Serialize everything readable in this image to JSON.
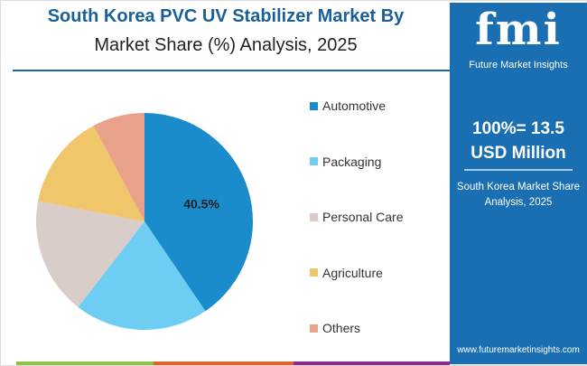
{
  "title": "South Korea PVC UV Stabilizer Market By",
  "subtitle": "Market Share (%) Analysis, 2025",
  "panel": {
    "logo": "fmi",
    "logo_sub": "Future Market Insights",
    "total_line1": "100%= 13.5",
    "total_line2": "USD Million",
    "note": "South Korea Market Share Analysis, 2025",
    "url": "www.futuremarketinsights.com"
  },
  "chart_data": {
    "type": "pie",
    "categories": [
      "Automotive",
      "Packaging",
      "Personal Care",
      "Agriculture",
      "Others"
    ],
    "values": [
      40.5,
      20.0,
      17.5,
      14.2,
      7.8
    ],
    "colors": [
      "#1a8ccb",
      "#6dcdf2",
      "#d8cdc8",
      "#efc66a",
      "#e9a18a"
    ],
    "data_labels": [
      "40.5%",
      "",
      "",
      "",
      ""
    ],
    "legend": "right"
  }
}
